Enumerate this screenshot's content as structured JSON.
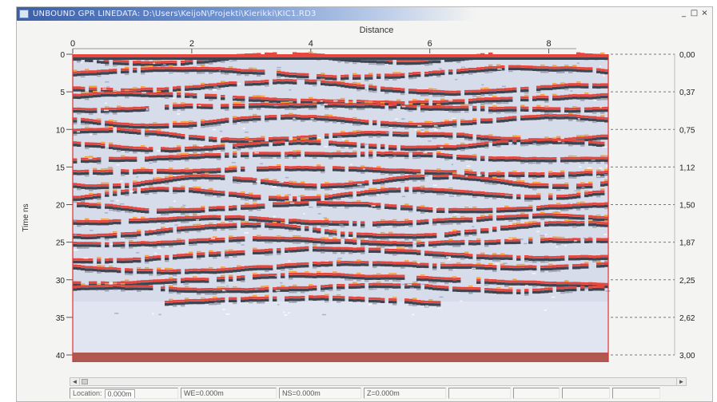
{
  "window": {
    "title": "UNBOUND GPR LINEDATA: D:\\Users\\KeijoN\\Projekti\\Kierikki\\KIC1.RD3",
    "controls": {
      "minimize": "_",
      "restore": "□",
      "close": "×"
    }
  },
  "radargram": {
    "x_axis_label": "Distance",
    "x_ticks": [
      "0",
      "2",
      "4",
      "6",
      "8"
    ],
    "y_axis_label": "Time ns",
    "y_ticks": [
      "0",
      "5",
      "10",
      "15",
      "20",
      "25",
      "30",
      "35",
      "40"
    ],
    "depth_ticks": [
      "0,00",
      "0,37",
      "0,75",
      "1,12",
      "1,50",
      "1,87",
      "2,25",
      "2,62",
      "3,00"
    ],
    "colors": {
      "background": "#d7dcea",
      "reflector_red": "#e8463c",
      "reflector_dark": "#3e4450",
      "reflector_orange": "#f0a33c",
      "bottom_band": "#b0584f",
      "frame": "#e03030"
    }
  },
  "scrollbar": {
    "left_arrow": "◄",
    "right_arrow": "►"
  },
  "statusbar": {
    "location_label": "Location:",
    "location_value": "0.000m",
    "we": "WE=0.000m",
    "ns": "NS=0.000m",
    "z": "Z=0.000m"
  }
}
